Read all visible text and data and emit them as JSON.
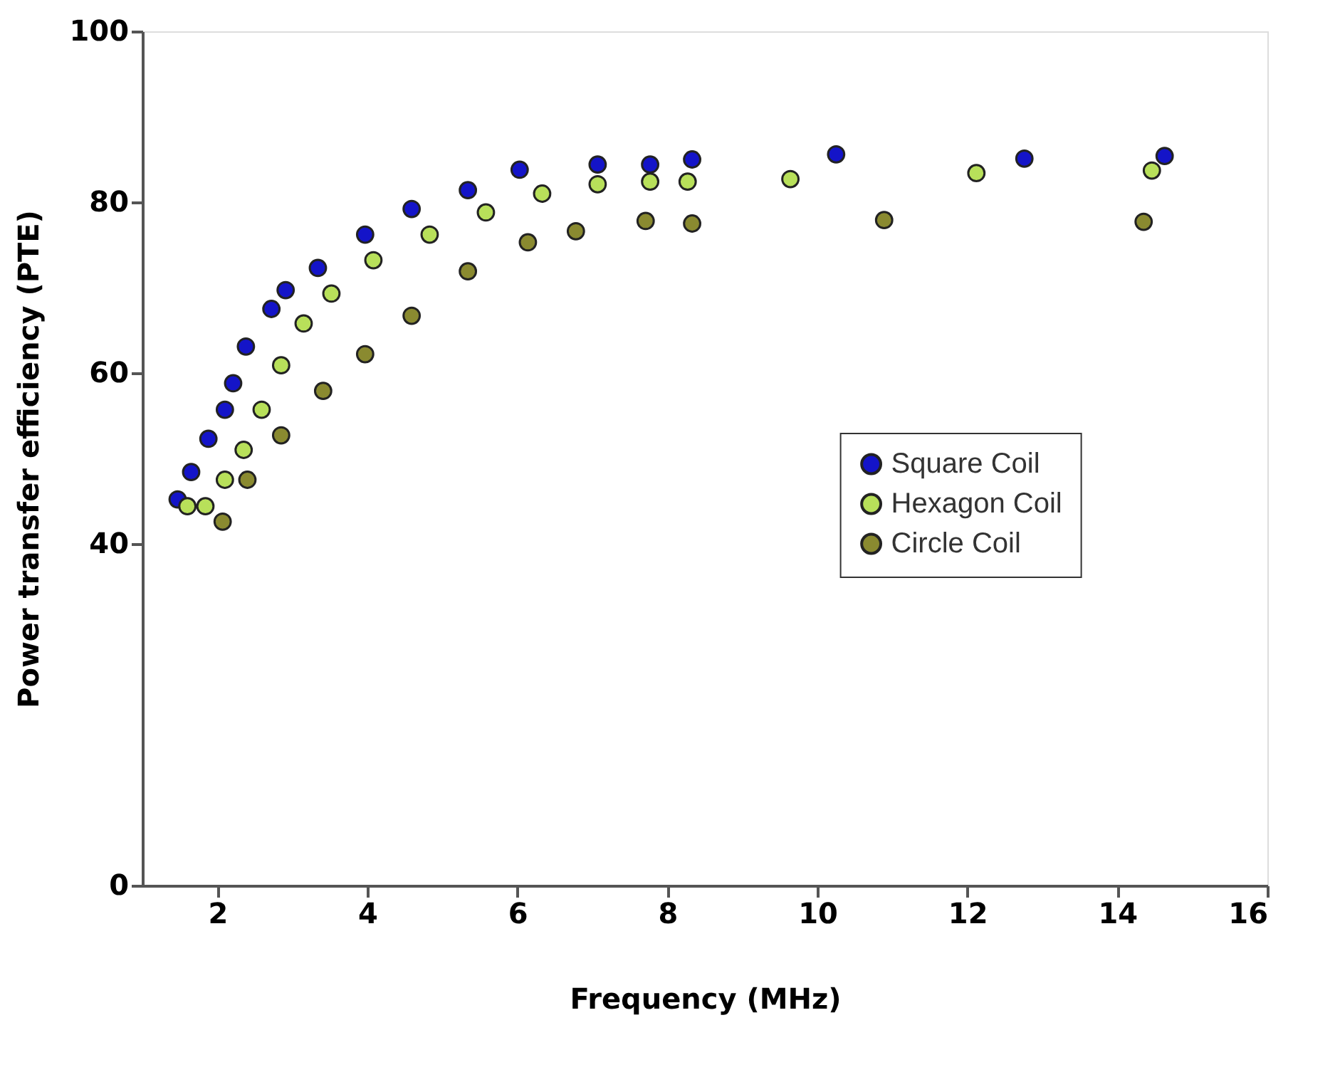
{
  "chart_data": {
    "type": "scatter",
    "xlabel": "Frequency (MHz)",
    "ylabel": "Power transfer efficiency (PTE)",
    "xlim": [
      1,
      16
    ],
    "xticks": [
      2,
      4,
      6,
      8,
      10,
      12,
      14,
      16
    ],
    "ylim": [
      0,
      100
    ],
    "yticks": [
      0,
      40,
      60,
      80,
      100
    ],
    "grid": false,
    "legend": "right",
    "marker": "circle",
    "series": [
      {
        "name": "Square Coil",
        "color": "#1414c8",
        "x": [
          1.47,
          1.65,
          1.88,
          2.1,
          2.21,
          2.38,
          2.72,
          2.91,
          3.34,
          3.97,
          4.59,
          5.34,
          6.03,
          7.07,
          7.77,
          8.33,
          10.25,
          12.76,
          14.63
        ],
        "values": [
          45.2,
          48.4,
          52.3,
          55.7,
          58.8,
          63.1,
          67.5,
          69.7,
          72.3,
          76.2,
          79.2,
          81.4,
          83.8,
          84.4,
          84.4,
          85,
          85.6,
          85.1,
          85.4
        ]
      },
      {
        "name": "Hexagon Coil",
        "color": "#b8e05a",
        "x": [
          1.6,
          1.84,
          2.1,
          2.35,
          2.59,
          2.85,
          3.15,
          3.52,
          4.08,
          4.83,
          5.58,
          6.33,
          7.07,
          7.77,
          8.27,
          9.64,
          12.12,
          14.46
        ],
        "values": [
          44.4,
          44.4,
          47.5,
          51,
          55.7,
          60.9,
          65.8,
          69.3,
          73.2,
          76.2,
          78.8,
          81,
          82.1,
          82.4,
          82.4,
          82.7,
          83.4,
          83.7
        ]
      },
      {
        "name": "Circle Coil",
        "color": "#8a8a30",
        "x": [
          2.07,
          2.4,
          2.85,
          3.41,
          3.97,
          4.59,
          5.34,
          6.14,
          6.78,
          7.71,
          8.33,
          10.89,
          14.35
        ],
        "values": [
          42.6,
          47.5,
          52.7,
          57.9,
          62.2,
          66.7,
          71.9,
          75.3,
          76.6,
          77.8,
          77.5,
          77.9,
          77.7
        ]
      }
    ]
  }
}
